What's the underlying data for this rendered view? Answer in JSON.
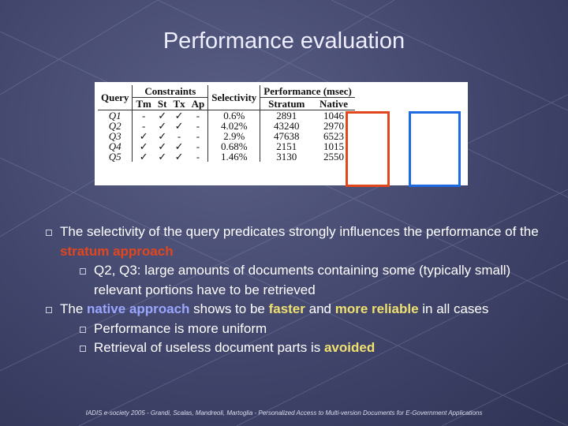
{
  "title": "Performance evaluation",
  "table": {
    "header": {
      "query": "Query",
      "constraints": "Constraints",
      "selectivity": "Selectivity",
      "performance": "Performance (msec)",
      "sub": [
        "Tm",
        "St",
        "Tx",
        "Ap",
        "Stratum",
        "Native"
      ]
    },
    "rows": [
      [
        "Q1",
        "-",
        "✓",
        "✓",
        "-",
        "0.6%",
        "2891",
        "1046"
      ],
      [
        "Q2",
        "-",
        "✓",
        "✓",
        "-",
        "4.02%",
        "43240",
        "2970"
      ],
      [
        "Q3",
        "✓",
        "✓",
        "-",
        "-",
        "2.9%",
        "47638",
        "6523"
      ],
      [
        "Q4",
        "✓",
        "✓",
        "✓",
        "-",
        "0.68%",
        "2151",
        "1015"
      ],
      [
        "Q5",
        "✓",
        "✓",
        "✓",
        "-",
        "1.46%",
        "3130",
        "2550"
      ]
    ]
  },
  "bullets": [
    {
      "parts": [
        "The selectivity of the query predicates strongly influences the performance of the ",
        "stratum approach"
      ],
      "sub": [
        [
          "Q2, Q3: large amounts of documents containing some (typically small) relevant portions have to be retrieved"
        ]
      ]
    },
    {
      "parts": [
        "The ",
        "native approach",
        " shows to be ",
        "faster",
        " and ",
        "more reliable",
        " in all cases"
      ],
      "sub": [
        [
          "Performance is more uniform"
        ],
        [
          "Retrieval of useless document parts is ",
          "avoided"
        ]
      ]
    }
  ],
  "footer": "IADIS e-society 2005 - Grandi, Scalas, Mandreoli, Martoglia - Personalized Access to Multi-version Documents for E-Government Applications"
}
